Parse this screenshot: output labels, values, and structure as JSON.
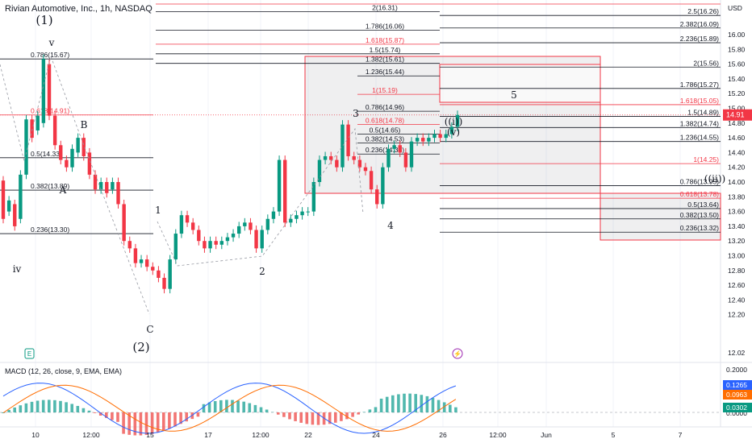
{
  "header": {
    "title": "Rivian Automotive, Inc., 1h, NASDAQ",
    "currency": "USD"
  },
  "macd_label": "MACD (12, 26, close, 9, EMA, EMA)",
  "price_axis": {
    "ticks": [
      "16.00",
      "15.80",
      "15.60",
      "15.40",
      "15.20",
      "15.00",
      "14.80",
      "14.60",
      "14.40",
      "14.20",
      "14.00",
      "13.80",
      "13.60",
      "13.40",
      "13.20",
      "13.00",
      "12.80",
      "12.60",
      "12.40",
      "12.20",
      "12.02"
    ],
    "current_price": "14.91",
    "colors": {
      "current": "#f23645"
    }
  },
  "macd_axis": {
    "ticks": [
      "0.2000",
      "0.0000"
    ],
    "badges": [
      {
        "value": "0.1265",
        "color": "#2962ff"
      },
      {
        "value": "0.0963",
        "color": "#ff6d00"
      },
      {
        "value": "0.0302",
        "color": "#089981"
      }
    ]
  },
  "time_axis": [
    "10",
    "12:00",
    "15",
    "17",
    "12:00",
    "22",
    "24",
    "26",
    "12:00",
    "Jun",
    "5",
    "7"
  ],
  "levels_left": [
    {
      "text": "0.786(15.67)",
      "price": 15.67,
      "color": "#131722"
    },
    {
      "text": "0.618(14.91)",
      "price": 14.91,
      "color": "#f23645"
    },
    {
      "text": "0.5(14.33)",
      "price": 14.33,
      "color": "#131722"
    },
    {
      "text": "0.382(13.89)",
      "price": 13.89,
      "color": "#131722"
    },
    {
      "text": "0.236(13.30)",
      "price": 13.3,
      "color": "#131722"
    }
  ],
  "levels_top": [
    {
      "text": "2(16.31)",
      "price": 16.31,
      "color": "#131722"
    },
    {
      "text": "1.786(16.06)",
      "price": 16.06,
      "color": "#131722"
    },
    {
      "text": "1.618(15.87)",
      "price": 15.87,
      "color": "#f23645"
    },
    {
      "text": "1.5(15.74)",
      "price": 15.74,
      "color": "#131722"
    },
    {
      "text": "1.382(15.61)",
      "price": 15.61,
      "color": "#131722"
    },
    {
      "text": "1.236(15.44)",
      "price": 15.44,
      "color": "#131722"
    },
    {
      "text": "1(15.19)",
      "price": 15.19,
      "color": "#f23645"
    },
    {
      "text": "0.786(14.96)",
      "price": 14.96,
      "color": "#131722"
    },
    {
      "text": "0.618(14.78)",
      "price": 14.78,
      "color": "#f23645"
    },
    {
      "text": "0.5(14.65)",
      "price": 14.65,
      "color": "#131722"
    },
    {
      "text": "0.382(14.53)",
      "price": 14.53,
      "color": "#131722"
    },
    {
      "text": "0.236(14.38)",
      "price": 14.38,
      "color": "#131722"
    }
  ],
  "levels_right": [
    {
      "text": "2.5(16.26)",
      "price": 16.26,
      "color": "#131722"
    },
    {
      "text": "2.382(16.09)",
      "price": 16.09,
      "color": "#131722"
    },
    {
      "text": "2.236(15.89)",
      "price": 15.89,
      "color": "#131722"
    },
    {
      "text": "2(15.56)",
      "price": 15.56,
      "color": "#131722"
    },
    {
      "text": "1.786(15.27)",
      "price": 15.27,
      "color": "#131722"
    },
    {
      "text": "1.618(15.05)",
      "price": 15.05,
      "color": "#f23645"
    },
    {
      "text": "1.5(14.89)",
      "price": 14.89,
      "color": "#131722"
    },
    {
      "text": "1.382(14.74)",
      "price": 14.74,
      "color": "#131722"
    },
    {
      "text": "1.236(14.55)",
      "price": 14.55,
      "color": "#131722"
    },
    {
      "text": "1(14.25)",
      "price": 14.25,
      "color": "#f23645"
    },
    {
      "text": "0.786(13.95)",
      "price": 13.95,
      "color": "#131722"
    },
    {
      "text": "0.618(13.78)",
      "price": 13.78,
      "color": "#f23645"
    },
    {
      "text": "0.5(13.64)",
      "price": 13.64,
      "color": "#131722"
    },
    {
      "text": "0.382(13.50)",
      "price": 13.5,
      "color": "#131722"
    },
    {
      "text": "0.236(13.32)",
      "price": 13.32,
      "color": "#131722"
    }
  ],
  "wave_labels": [
    {
      "text": "(1)",
      "big": true
    },
    {
      "text": "v"
    },
    {
      "text": "B"
    },
    {
      "text": "A"
    },
    {
      "text": "iv"
    },
    {
      "text": "C"
    },
    {
      "text": "(2)",
      "big": true
    },
    {
      "text": "1"
    },
    {
      "text": "2"
    },
    {
      "text": "3"
    },
    {
      "text": "4"
    },
    {
      "text": "5"
    },
    {
      "text": "((i))"
    },
    {
      "text": "(v)"
    },
    {
      "text": "((ii))"
    }
  ],
  "markers": {
    "earnings": "E",
    "event": "⚡"
  },
  "chart_data": {
    "type": "candlestick+macd",
    "ylim": [
      12.02,
      16.45
    ],
    "colors": {
      "up": "#089981",
      "down": "#f23645",
      "macd": "#2962ff",
      "signal": "#ff6d00"
    },
    "price_path": [
      [
        14.02,
        13.5
      ],
      [
        13.6,
        13.75
      ],
      [
        13.7,
        13.4
      ],
      [
        13.5,
        14.1
      ],
      [
        14.1,
        14.85
      ],
      [
        14.85,
        14.6
      ],
      [
        14.7,
        14.9
      ],
      [
        14.8,
        15.67
      ],
      [
        15.6,
        14.9
      ],
      [
        14.9,
        14.5
      ],
      [
        14.5,
        14.3
      ],
      [
        14.3,
        14.2
      ],
      [
        14.2,
        14.45
      ],
      [
        14.4,
        14.6
      ],
      [
        14.6,
        14.35
      ],
      [
        14.4,
        14.1
      ],
      [
        14.1,
        13.9
      ],
      [
        13.9,
        14.0
      ],
      [
        14.0,
        13.85
      ],
      [
        13.9,
        14.0
      ],
      [
        14.0,
        13.7
      ],
      [
        13.7,
        13.2
      ],
      [
        13.2,
        13.1
      ],
      [
        13.1,
        12.9
      ],
      [
        12.9,
        12.95
      ],
      [
        12.95,
        12.85
      ],
      [
        12.85,
        12.8
      ],
      [
        12.8,
        12.7
      ],
      [
        12.7,
        12.55
      ],
      [
        12.55,
        12.95
      ],
      [
        12.95,
        13.3
      ],
      [
        13.3,
        13.55
      ],
      [
        13.55,
        13.45
      ],
      [
        13.45,
        13.35
      ],
      [
        13.35,
        13.2
      ],
      [
        13.2,
        13.1
      ],
      [
        13.1,
        13.2
      ],
      [
        13.2,
        13.15
      ],
      [
        13.15,
        13.2
      ],
      [
        13.2,
        13.25
      ],
      [
        13.25,
        13.3
      ],
      [
        13.3,
        13.4
      ],
      [
        13.4,
        13.45
      ],
      [
        13.45,
        13.35
      ],
      [
        13.35,
        13.1
      ],
      [
        13.1,
        13.35
      ],
      [
        13.35,
        13.5
      ],
      [
        13.5,
        13.6
      ],
      [
        13.6,
        14.3
      ],
      [
        14.3,
        13.45
      ],
      [
        13.45,
        13.5
      ],
      [
        13.5,
        13.55
      ],
      [
        13.55,
        13.6
      ],
      [
        13.6,
        13.6
      ],
      [
        13.6,
        14.0
      ],
      [
        14.0,
        14.3
      ],
      [
        14.3,
        14.35
      ],
      [
        14.35,
        14.3
      ],
      [
        14.3,
        14.2
      ],
      [
        14.2,
        14.78
      ],
      [
        14.78,
        14.35
      ],
      [
        14.35,
        14.3
      ],
      [
        14.3,
        14.2
      ],
      [
        14.2,
        14.15
      ],
      [
        14.15,
        13.9
      ],
      [
        13.9,
        13.7
      ],
      [
        13.7,
        14.2
      ],
      [
        14.2,
        14.45
      ],
      [
        14.45,
        14.5
      ],
      [
        14.5,
        14.4
      ],
      [
        14.4,
        14.2
      ],
      [
        14.2,
        14.55
      ],
      [
        14.55,
        14.6
      ],
      [
        14.6,
        14.55
      ],
      [
        14.55,
        14.6
      ],
      [
        14.6,
        14.65
      ],
      [
        14.65,
        14.6
      ],
      [
        14.6,
        14.65
      ],
      [
        14.65,
        14.75
      ],
      [
        14.75,
        14.91
      ]
    ]
  }
}
